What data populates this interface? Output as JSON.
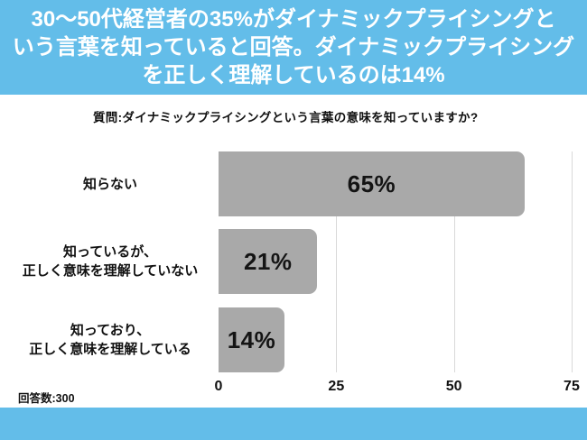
{
  "header": {
    "title_lines": [
      "30〜50代経営者の35%がダイナミックプライシングと",
      "いう言葉を知っていると回答。ダイナミックプライシング",
      "を正しく理解しているのは14%"
    ]
  },
  "question_label": "質問:ダイナミックプライシングという言葉の意味を知っていますか?",
  "footnote": "回答数:300",
  "colors": {
    "header_bg": "#63BDE9",
    "footer_bg": "#63BDE9",
    "bar": "#A9A9A9",
    "gridline": "#D9D9D9",
    "title_text": "#FFFFFF",
    "body_text": "#111111"
  },
  "chart_data": {
    "type": "bar",
    "orientation": "horizontal",
    "title": "質問:ダイナミックプライシングという言葉の意味を知っていますか?",
    "categories": [
      "知らない",
      "知っているが、正しく意味を理解していない",
      "知っており、正しく意味を理解している"
    ],
    "category_lines": [
      [
        "知らない"
      ],
      [
        "知っているが、",
        "正しく意味を理解していない"
      ],
      [
        "知っており、",
        "正しく意味を理解している"
      ]
    ],
    "values": [
      65,
      21,
      14
    ],
    "value_labels": [
      "65%",
      "21%",
      "14%"
    ],
    "xlim": [
      0,
      77.5
    ],
    "xticks": [
      0,
      25,
      50,
      75
    ],
    "grid": true,
    "legend": false,
    "sample_size_note": "回答数:300"
  }
}
